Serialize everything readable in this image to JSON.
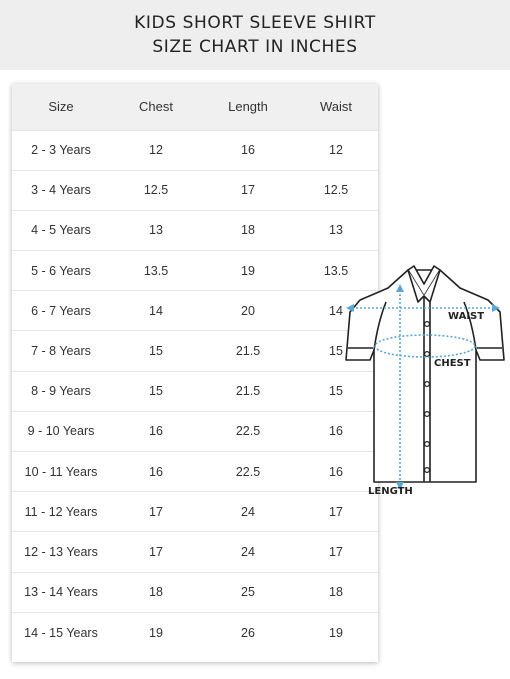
{
  "title": {
    "line1": "KIDS SHORT SLEEVE SHIRT",
    "line2": "SIZE CHART IN INCHES"
  },
  "table": {
    "headers": [
      "Size",
      "Chest",
      "Length",
      "Waist"
    ],
    "rows": [
      [
        "2 - 3 Years",
        "12",
        "16",
        "12"
      ],
      [
        "3 - 4 Years",
        "12.5",
        "17",
        "12.5"
      ],
      [
        "4 - 5 Years",
        "13",
        "18",
        "13"
      ],
      [
        "5 - 6 Years",
        "13.5",
        "19",
        "13.5"
      ],
      [
        "6 - 7 Years",
        "14",
        "20",
        "14"
      ],
      [
        "7 - 8 Years",
        "15",
        "21.5",
        "15"
      ],
      [
        "8 - 9 Years",
        "15",
        "21.5",
        "15"
      ],
      [
        "9 - 10 Years",
        "16",
        "22.5",
        "16"
      ],
      [
        "10 - 11 Years",
        "16",
        "22.5",
        "16"
      ],
      [
        "11 - 12 Years",
        "17",
        "24",
        "17"
      ],
      [
        "12 - 13 Years",
        "17",
        "24",
        "17"
      ],
      [
        "13 - 14 Years",
        "18",
        "25",
        "18"
      ],
      [
        "14 - 15 Years",
        "19",
        "26",
        "19"
      ]
    ]
  },
  "diagram": {
    "waist_label": "WAIST",
    "chest_label": "CHEST",
    "length_label": "LENGTH",
    "icon": "shirt-icon"
  },
  "colors": {
    "banner_bg": "#eeeeee",
    "header_bg": "#f0f0f0",
    "measure_line": "#5aa8d8"
  }
}
